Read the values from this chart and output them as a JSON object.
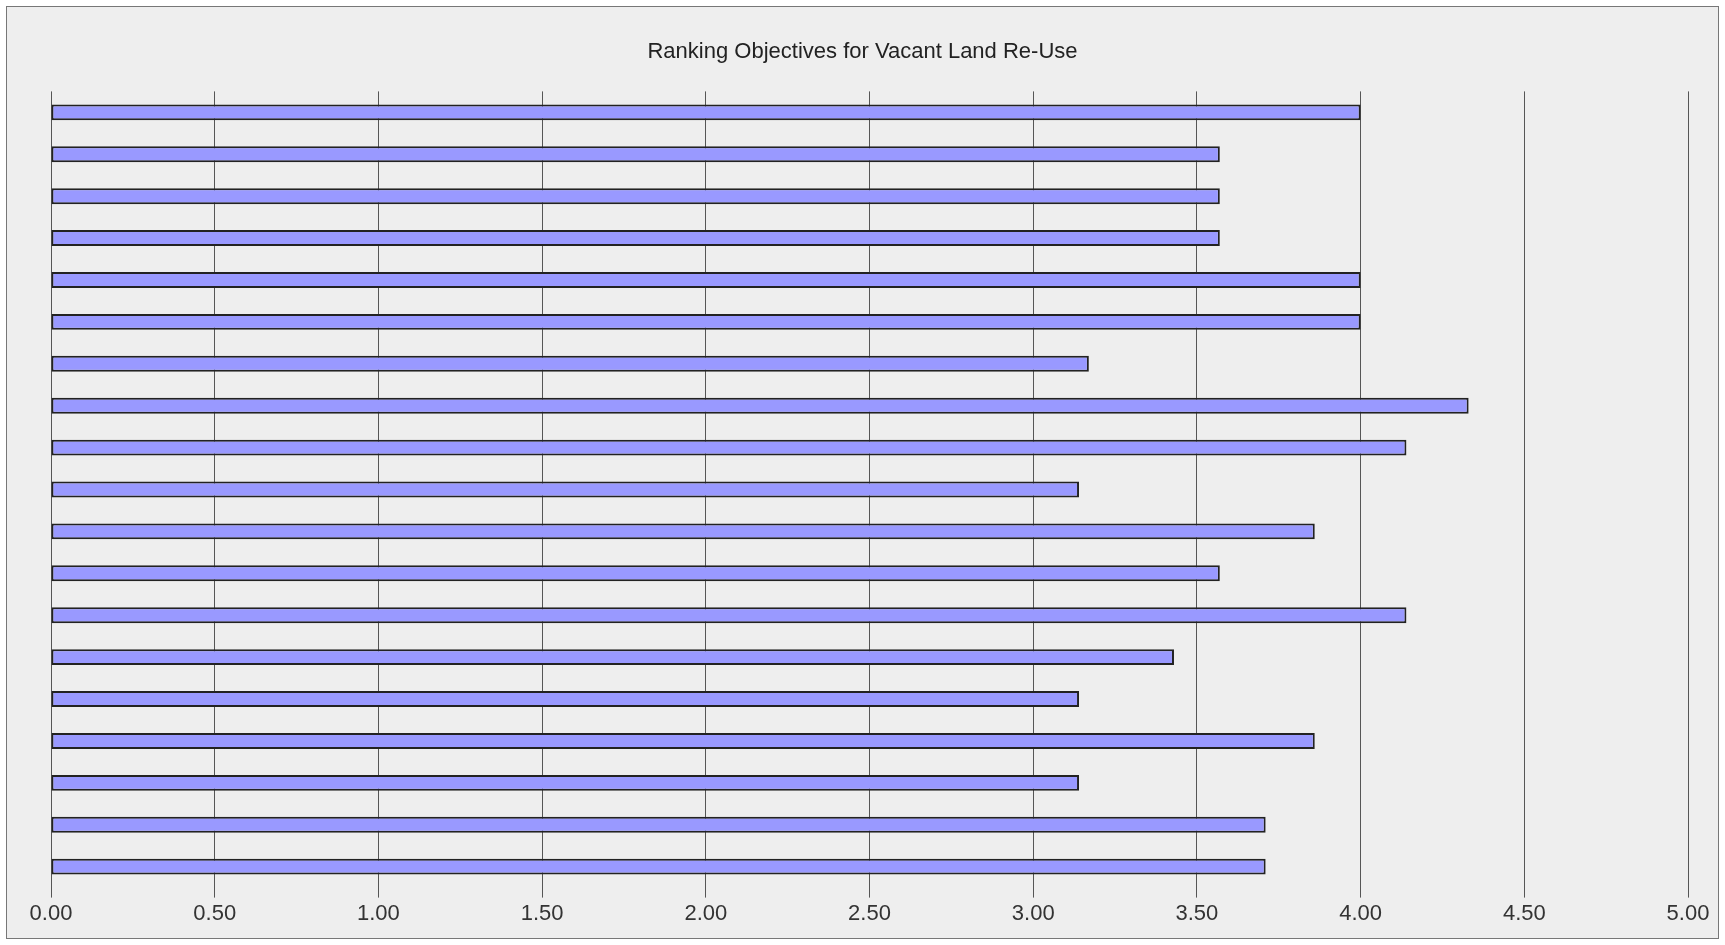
{
  "chart_data": {
    "type": "bar",
    "orientation": "horizontal",
    "title": "Ranking Objectives for Vacant Land Re-Use",
    "categories": [
      null,
      null,
      null,
      null,
      null,
      null,
      null,
      null,
      null,
      null,
      null,
      null,
      null,
      null,
      null,
      null,
      null,
      null,
      null
    ],
    "values": [
      4.0,
      3.57,
      3.57,
      3.57,
      4.0,
      4.0,
      3.17,
      4.33,
      4.14,
      3.14,
      3.86,
      3.57,
      4.14,
      3.43,
      3.14,
      3.86,
      3.14,
      3.71,
      3.71
    ],
    "color": "#9999ff",
    "xlim": [
      0,
      5
    ],
    "xticks": [
      {
        "value": 0,
        "label": "0.00"
      },
      {
        "value": 0.5,
        "label": "0.50"
      },
      {
        "value": 1,
        "label": "1.00"
      },
      {
        "value": 1.5,
        "label": "1.50"
      },
      {
        "value": 2,
        "label": "2.00"
      },
      {
        "value": 2.5,
        "label": "2.50"
      },
      {
        "value": 3,
        "label": "3.00"
      },
      {
        "value": 3.5,
        "label": "3.50"
      },
      {
        "value": 4,
        "label": "4.00"
      },
      {
        "value": 4.5,
        "label": "4.50"
      },
      {
        "value": 5,
        "label": "5.00"
      }
    ],
    "grid": "x"
  }
}
